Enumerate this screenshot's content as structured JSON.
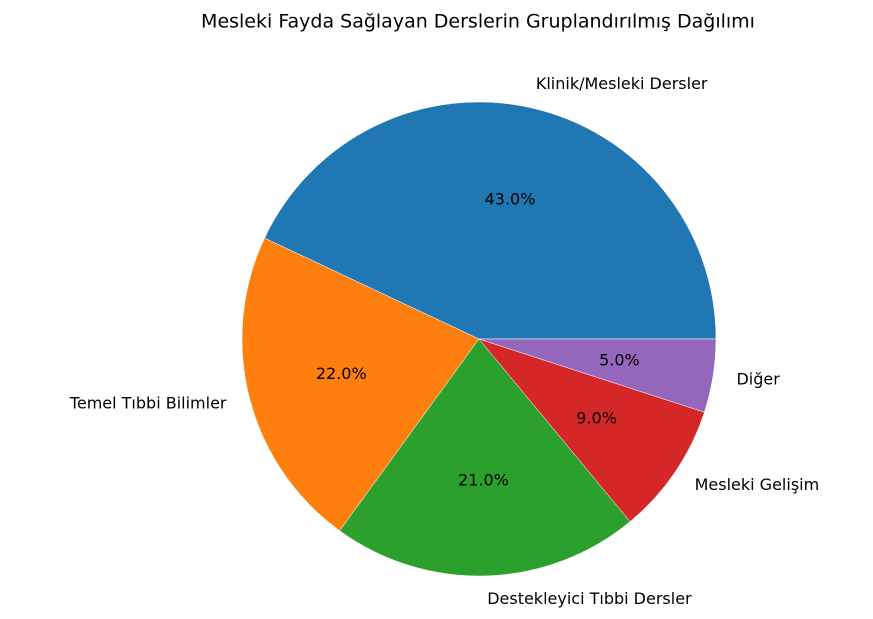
{
  "chart_data": {
    "type": "pie",
    "title": "Mesleki Fayda Sağlayan Derslerin Gruplandırılmış Dağılımı",
    "categories": [
      "Klinik/Mesleki Dersler",
      "Temel Tıbbi Bilimler",
      "Destekleyici Tıbbi Dersler",
      "Mesleki Gelişim",
      "Diğer"
    ],
    "values": [
      43,
      22,
      21,
      9,
      5
    ],
    "value_labels": [
      "43.0%",
      "22.0%",
      "21.0%",
      "9.0%",
      "5.0%"
    ],
    "colors": [
      "#1f77b4",
      "#ff7f0e",
      "#2ca02c",
      "#d62728",
      "#9467bd"
    ]
  }
}
